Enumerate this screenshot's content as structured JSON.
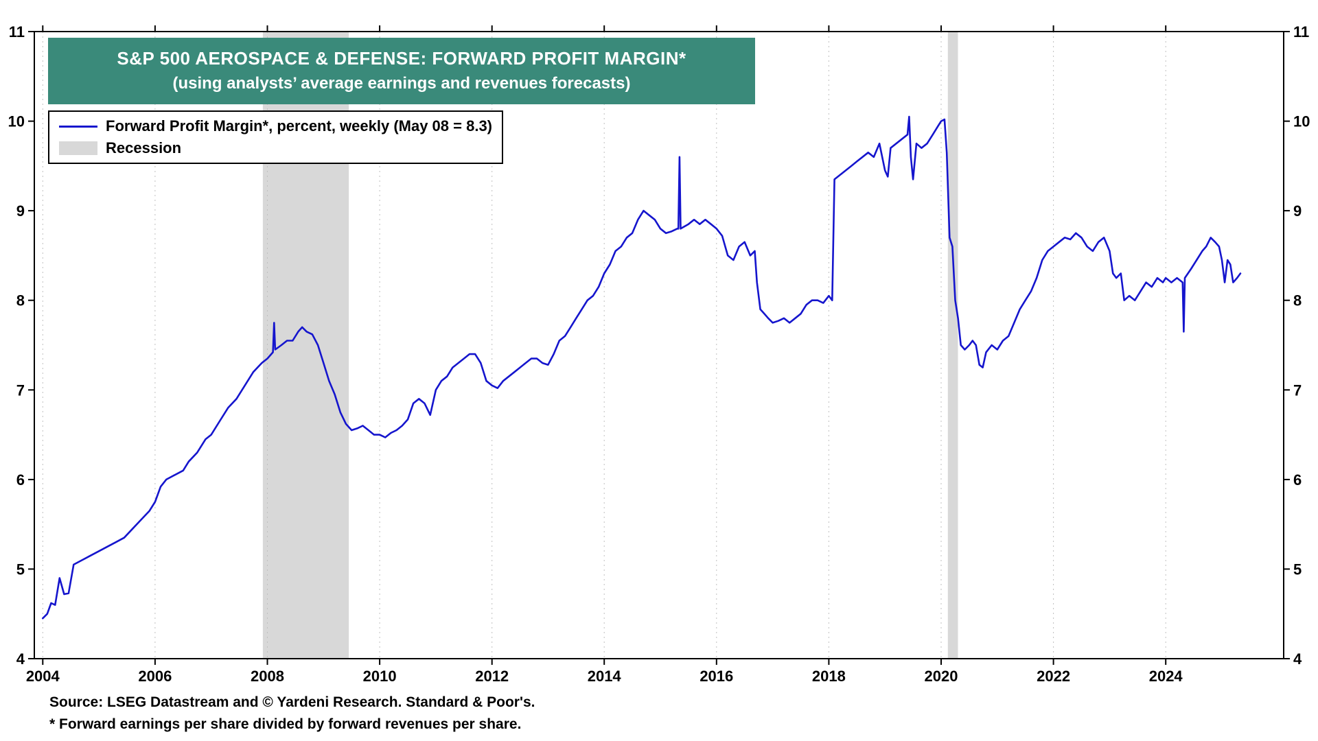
{
  "page": {
    "title_line1": "S&P 500 AEROSPACE & DEFENSE: FORWARD PROFIT MARGIN*",
    "title_line2": "(using analysts’ average earnings and revenues forecasts)",
    "source_line": "Source: LSEG Datastream and © Yardeni Research. Standard & Poor's.",
    "footnote_line": "* Forward earnings per share divided by forward revenues per share."
  },
  "legend": {
    "series_label": "Forward Profit Margin*, percent, weekly (May 08 = 8.3)",
    "recession_label": "Recession"
  },
  "colors": {
    "line": "#1515cd",
    "recession": "#d8d8d8",
    "title_bg": "#3a8a7a",
    "title_text": "#ffffff",
    "axis": "#000000",
    "grid": "#bfbfbf"
  },
  "chart_data": {
    "type": "line",
    "title": "S&P 500 Aerospace & Defense: Forward Profit Margin",
    "xlabel": "",
    "ylabel": "percent",
    "xlim": [
      2003.85,
      2026.1
    ],
    "ylim": [
      4,
      11
    ],
    "x_ticks": [
      2004,
      2006,
      2008,
      2010,
      2012,
      2014,
      2016,
      2018,
      2020,
      2022,
      2024
    ],
    "y_ticks": [
      4,
      5,
      6,
      7,
      8,
      9,
      10,
      11
    ],
    "grid": "vertical-dashed",
    "legend_position": "top-left",
    "recession_bands": [
      [
        2007.92,
        2009.45
      ],
      [
        2020.12,
        2020.3
      ]
    ],
    "series": [
      {
        "name": "Forward Profit Margin*, percent, weekly (May 08 = 8.3)",
        "points": [
          [
            2004.0,
            4.45
          ],
          [
            2004.08,
            4.5
          ],
          [
            2004.15,
            4.62
          ],
          [
            2004.22,
            4.6
          ],
          [
            2004.3,
            4.9
          ],
          [
            2004.38,
            4.72
          ],
          [
            2004.46,
            4.73
          ],
          [
            2004.55,
            5.05
          ],
          [
            2004.7,
            5.1
          ],
          [
            2004.85,
            5.15
          ],
          [
            2005.0,
            5.2
          ],
          [
            2005.15,
            5.25
          ],
          [
            2005.3,
            5.3
          ],
          [
            2005.45,
            5.35
          ],
          [
            2005.6,
            5.45
          ],
          [
            2005.75,
            5.55
          ],
          [
            2005.9,
            5.65
          ],
          [
            2006.0,
            5.75
          ],
          [
            2006.1,
            5.92
          ],
          [
            2006.2,
            6.0
          ],
          [
            2006.35,
            6.05
          ],
          [
            2006.5,
            6.1
          ],
          [
            2006.6,
            6.2
          ],
          [
            2006.75,
            6.3
          ],
          [
            2006.9,
            6.45
          ],
          [
            2007.0,
            6.5
          ],
          [
            2007.15,
            6.65
          ],
          [
            2007.3,
            6.8
          ],
          [
            2007.45,
            6.9
          ],
          [
            2007.6,
            7.05
          ],
          [
            2007.75,
            7.2
          ],
          [
            2007.9,
            7.3
          ],
          [
            2008.0,
            7.35
          ],
          [
            2008.1,
            7.42
          ],
          [
            2008.12,
            7.75
          ],
          [
            2008.14,
            7.45
          ],
          [
            2008.25,
            7.5
          ],
          [
            2008.35,
            7.55
          ],
          [
            2008.45,
            7.55
          ],
          [
            2008.55,
            7.65
          ],
          [
            2008.62,
            7.7
          ],
          [
            2008.7,
            7.65
          ],
          [
            2008.8,
            7.62
          ],
          [
            2008.9,
            7.5
          ],
          [
            2009.0,
            7.3
          ],
          [
            2009.1,
            7.1
          ],
          [
            2009.2,
            6.95
          ],
          [
            2009.3,
            6.75
          ],
          [
            2009.4,
            6.62
          ],
          [
            2009.5,
            6.55
          ],
          [
            2009.6,
            6.57
          ],
          [
            2009.7,
            6.6
          ],
          [
            2009.8,
            6.55
          ],
          [
            2009.9,
            6.5
          ],
          [
            2010.0,
            6.5
          ],
          [
            2010.1,
            6.47
          ],
          [
            2010.2,
            6.52
          ],
          [
            2010.3,
            6.55
          ],
          [
            2010.4,
            6.6
          ],
          [
            2010.5,
            6.67
          ],
          [
            2010.6,
            6.85
          ],
          [
            2010.7,
            6.9
          ],
          [
            2010.8,
            6.85
          ],
          [
            2010.9,
            6.72
          ],
          [
            2011.0,
            7.0
          ],
          [
            2011.1,
            7.1
          ],
          [
            2011.2,
            7.15
          ],
          [
            2011.3,
            7.25
          ],
          [
            2011.4,
            7.3
          ],
          [
            2011.5,
            7.35
          ],
          [
            2011.6,
            7.4
          ],
          [
            2011.7,
            7.4
          ],
          [
            2011.8,
            7.3
          ],
          [
            2011.9,
            7.1
          ],
          [
            2012.0,
            7.05
          ],
          [
            2012.1,
            7.02
          ],
          [
            2012.2,
            7.1
          ],
          [
            2012.3,
            7.15
          ],
          [
            2012.4,
            7.2
          ],
          [
            2012.5,
            7.25
          ],
          [
            2012.6,
            7.3
          ],
          [
            2012.7,
            7.35
          ],
          [
            2012.8,
            7.35
          ],
          [
            2012.9,
            7.3
          ],
          [
            2013.0,
            7.28
          ],
          [
            2013.1,
            7.4
          ],
          [
            2013.2,
            7.55
          ],
          [
            2013.3,
            7.6
          ],
          [
            2013.4,
            7.7
          ],
          [
            2013.5,
            7.8
          ],
          [
            2013.6,
            7.9
          ],
          [
            2013.7,
            8.0
          ],
          [
            2013.8,
            8.05
          ],
          [
            2013.9,
            8.15
          ],
          [
            2014.0,
            8.3
          ],
          [
            2014.1,
            8.4
          ],
          [
            2014.2,
            8.55
          ],
          [
            2014.3,
            8.6
          ],
          [
            2014.4,
            8.7
          ],
          [
            2014.5,
            8.75
          ],
          [
            2014.6,
            8.9
          ],
          [
            2014.7,
            9.0
          ],
          [
            2014.8,
            8.95
          ],
          [
            2014.9,
            8.9
          ],
          [
            2015.0,
            8.8
          ],
          [
            2015.1,
            8.75
          ],
          [
            2015.2,
            8.77
          ],
          [
            2015.3,
            8.8
          ],
          [
            2015.32,
            8.8
          ],
          [
            2015.34,
            9.6
          ],
          [
            2015.36,
            8.8
          ],
          [
            2015.5,
            8.85
          ],
          [
            2015.6,
            8.9
          ],
          [
            2015.7,
            8.85
          ],
          [
            2015.8,
            8.9
          ],
          [
            2015.9,
            8.85
          ],
          [
            2016.0,
            8.8
          ],
          [
            2016.1,
            8.72
          ],
          [
            2016.2,
            8.5
          ],
          [
            2016.3,
            8.45
          ],
          [
            2016.4,
            8.6
          ],
          [
            2016.5,
            8.65
          ],
          [
            2016.6,
            8.5
          ],
          [
            2016.68,
            8.55
          ],
          [
            2016.72,
            8.2
          ],
          [
            2016.78,
            7.9
          ],
          [
            2016.85,
            7.85
          ],
          [
            2016.92,
            7.8
          ],
          [
            2017.0,
            7.75
          ],
          [
            2017.1,
            7.77
          ],
          [
            2017.2,
            7.8
          ],
          [
            2017.3,
            7.75
          ],
          [
            2017.4,
            7.8
          ],
          [
            2017.5,
            7.85
          ],
          [
            2017.6,
            7.95
          ],
          [
            2017.7,
            8.0
          ],
          [
            2017.8,
            8.0
          ],
          [
            2017.9,
            7.97
          ],
          [
            2018.0,
            8.05
          ],
          [
            2018.06,
            8.0
          ],
          [
            2018.1,
            9.35
          ],
          [
            2018.2,
            9.4
          ],
          [
            2018.3,
            9.45
          ],
          [
            2018.4,
            9.5
          ],
          [
            2018.5,
            9.55
          ],
          [
            2018.6,
            9.6
          ],
          [
            2018.7,
            9.65
          ],
          [
            2018.8,
            9.6
          ],
          [
            2018.9,
            9.75
          ],
          [
            2019.0,
            9.45
          ],
          [
            2019.05,
            9.38
          ],
          [
            2019.1,
            9.7
          ],
          [
            2019.2,
            9.75
          ],
          [
            2019.3,
            9.8
          ],
          [
            2019.4,
            9.85
          ],
          [
            2019.43,
            10.05
          ],
          [
            2019.46,
            9.6
          ],
          [
            2019.5,
            9.35
          ],
          [
            2019.56,
            9.75
          ],
          [
            2019.65,
            9.7
          ],
          [
            2019.75,
            9.75
          ],
          [
            2019.85,
            9.85
          ],
          [
            2019.95,
            9.95
          ],
          [
            2020.0,
            10.0
          ],
          [
            2020.06,
            10.02
          ],
          [
            2020.1,
            9.65
          ],
          [
            2020.15,
            8.7
          ],
          [
            2020.2,
            8.6
          ],
          [
            2020.25,
            8.0
          ],
          [
            2020.3,
            7.8
          ],
          [
            2020.35,
            7.5
          ],
          [
            2020.42,
            7.45
          ],
          [
            2020.5,
            7.5
          ],
          [
            2020.56,
            7.55
          ],
          [
            2020.62,
            7.5
          ],
          [
            2020.68,
            7.28
          ],
          [
            2020.74,
            7.25
          ],
          [
            2020.8,
            7.42
          ],
          [
            2020.9,
            7.5
          ],
          [
            2021.0,
            7.45
          ],
          [
            2021.1,
            7.55
          ],
          [
            2021.2,
            7.6
          ],
          [
            2021.3,
            7.75
          ],
          [
            2021.4,
            7.9
          ],
          [
            2021.5,
            8.0
          ],
          [
            2021.6,
            8.1
          ],
          [
            2021.7,
            8.25
          ],
          [
            2021.8,
            8.45
          ],
          [
            2021.9,
            8.55
          ],
          [
            2022.0,
            8.6
          ],
          [
            2022.1,
            8.65
          ],
          [
            2022.2,
            8.7
          ],
          [
            2022.3,
            8.68
          ],
          [
            2022.4,
            8.75
          ],
          [
            2022.5,
            8.7
          ],
          [
            2022.6,
            8.6
          ],
          [
            2022.7,
            8.55
          ],
          [
            2022.8,
            8.65
          ],
          [
            2022.9,
            8.7
          ],
          [
            2023.0,
            8.55
          ],
          [
            2023.06,
            8.3
          ],
          [
            2023.12,
            8.25
          ],
          [
            2023.2,
            8.3
          ],
          [
            2023.26,
            8.0
          ],
          [
            2023.35,
            8.05
          ],
          [
            2023.45,
            8.0
          ],
          [
            2023.55,
            8.1
          ],
          [
            2023.65,
            8.2
          ],
          [
            2023.75,
            8.15
          ],
          [
            2023.85,
            8.25
          ],
          [
            2023.95,
            8.2
          ],
          [
            2024.0,
            8.25
          ],
          [
            2024.1,
            8.2
          ],
          [
            2024.2,
            8.25
          ],
          [
            2024.3,
            8.2
          ],
          [
            2024.32,
            7.65
          ],
          [
            2024.34,
            8.25
          ],
          [
            2024.45,
            8.35
          ],
          [
            2024.55,
            8.45
          ],
          [
            2024.65,
            8.55
          ],
          [
            2024.72,
            8.6
          ],
          [
            2024.8,
            8.7
          ],
          [
            2024.88,
            8.65
          ],
          [
            2024.95,
            8.6
          ],
          [
            2025.0,
            8.45
          ],
          [
            2025.05,
            8.2
          ],
          [
            2025.1,
            8.45
          ],
          [
            2025.15,
            8.4
          ],
          [
            2025.2,
            8.2
          ],
          [
            2025.27,
            8.25
          ],
          [
            2025.33,
            8.3
          ]
        ]
      }
    ]
  }
}
